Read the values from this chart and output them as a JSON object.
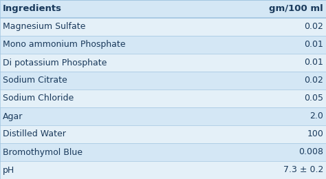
{
  "headers": [
    "Ingredients",
    "gm/100 ml"
  ],
  "rows": [
    [
      "Magnesium Sulfate",
      "0.02"
    ],
    [
      "Mono ammonium Phosphate",
      "0.01"
    ],
    [
      "Di potassium Phosphate",
      "0.01"
    ],
    [
      "Sodium Citrate",
      "0.02"
    ],
    [
      "Sodium Chloride",
      "0.05"
    ],
    [
      "Agar",
      "2.0"
    ],
    [
      "Distilled Water",
      "100"
    ],
    [
      "Bromothymol Blue",
      "0.008"
    ],
    [
      "pH",
      "7.3 ± 0.2"
    ]
  ],
  "header_bg": "#d4e7f5",
  "row_bg_light": "#e4f0f8",
  "row_bg_dark": "#d4e7f5",
  "header_text_color": "#1a3a5c",
  "row_text_color": "#1a3a5c",
  "border_color": "#a0c4e0",
  "header_fontsize": 9.5,
  "row_fontsize": 9.0,
  "fig_bg": "#ffffff"
}
